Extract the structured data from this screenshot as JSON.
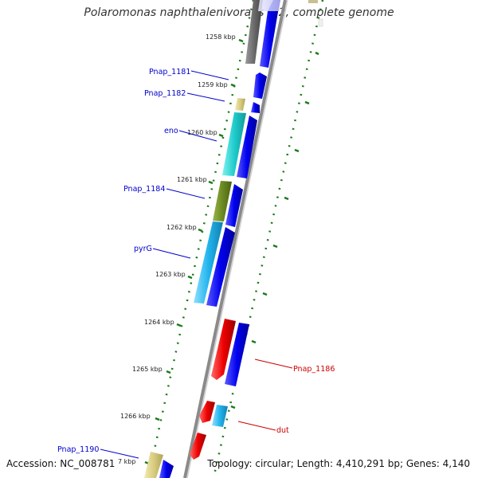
{
  "title": "Polaromonas naphthalenivorans CJ2, complete genome",
  "footer": {
    "accession": "Accession: NC_008781",
    "topology": "Topology: circular; Length: 4,410,291 bp; Genes: 4,140"
  },
  "ticks": [
    "1258 kbp",
    "1259 kbp",
    "1260 kbp",
    "1261 kbp",
    "1262 kbp",
    "1263 kbp",
    "1264 kbp",
    "1265 kbp",
    "1266 kbp",
    "7 kbp"
  ],
  "gene_labels_left": [
    "Pnap_1181",
    "Pnap_1182",
    "eno",
    "Pnap_1184",
    "pyrG",
    "Pnap_1190"
  ],
  "gene_labels_right": [
    "Pnap_1186",
    "dut"
  ],
  "colors": {
    "backbone": "#7a7a7a",
    "cds": "#0000ee",
    "rev": "#ee0000",
    "tick": "#1a7a1a",
    "label_blue": "#0000cc",
    "label_red": "#cc0000"
  }
}
